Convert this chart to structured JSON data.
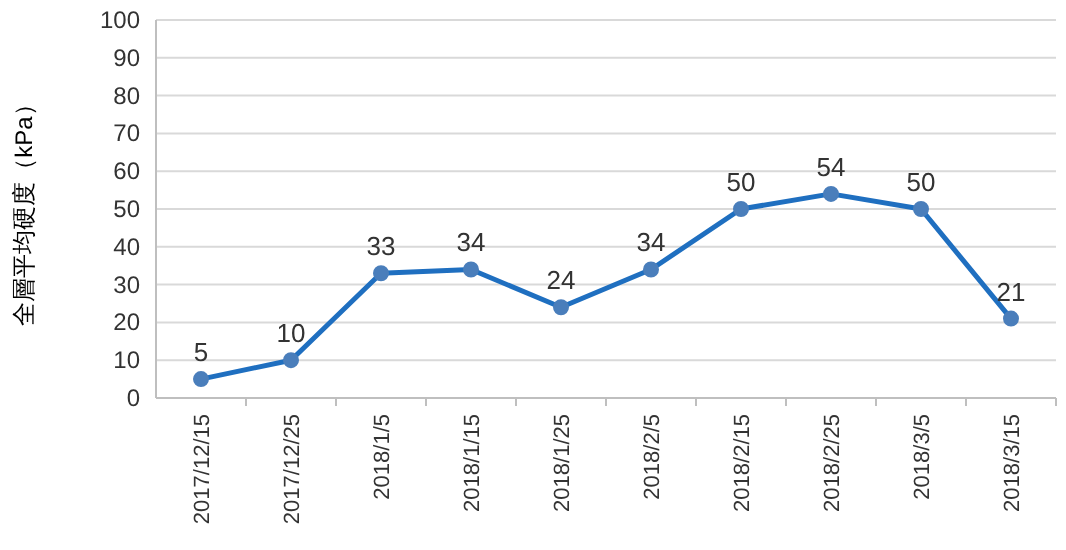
{
  "chart_data": {
    "type": "line",
    "ylabel": "全層平均硬度（kPa）",
    "categories": [
      "2017/12/15",
      "2017/12/25",
      "2018/1/5",
      "2018/1/15",
      "2018/1/25",
      "2018/2/5",
      "2018/2/15",
      "2018/2/25",
      "2018/3/5",
      "2018/3/15"
    ],
    "values": [
      5,
      10,
      33,
      34,
      24,
      34,
      50,
      54,
      50,
      21
    ],
    "color": "#1f6fc0",
    "ylim": [
      0,
      100
    ],
    "yticks": [
      0,
      10,
      20,
      30,
      40,
      50,
      60,
      70,
      80,
      90,
      100
    ],
    "grid": "y",
    "marker": "circle",
    "data_labels": true
  }
}
